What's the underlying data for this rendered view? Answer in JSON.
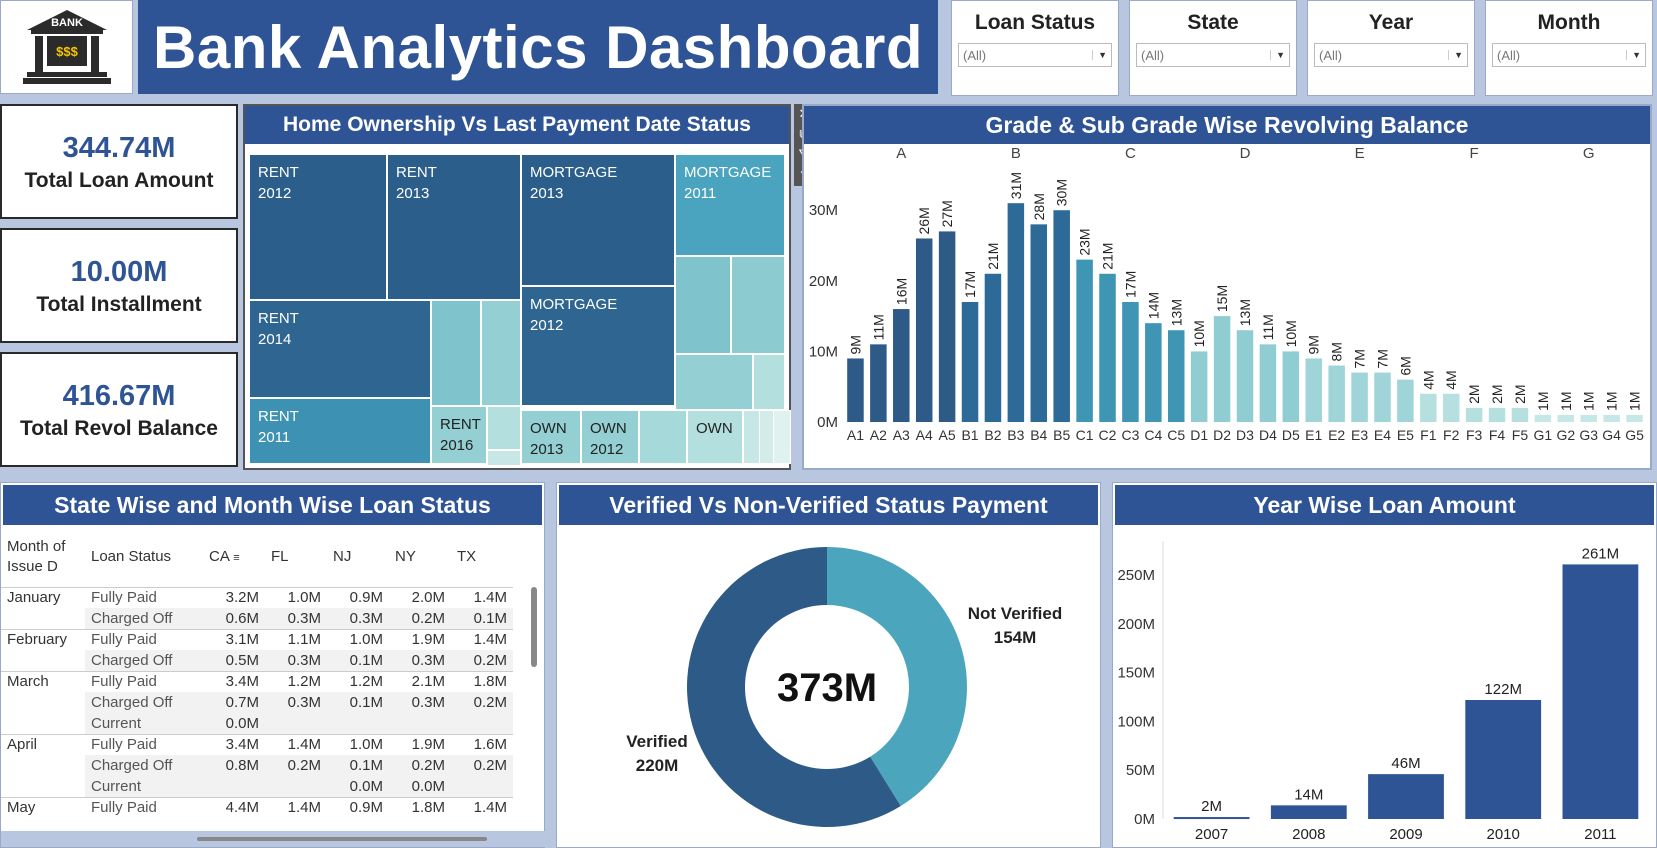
{
  "logo": {
    "text": "BANK",
    "symbol": "$$$",
    "icon": "bank-building-icon"
  },
  "title": "Bank Analytics Dashboard",
  "filters": [
    {
      "label": "Loan Status",
      "value": "(All)"
    },
    {
      "label": "State",
      "value": "(All)"
    },
    {
      "label": "Year",
      "value": "(All)"
    },
    {
      "label": "Month",
      "value": "(All)"
    }
  ],
  "kpis": [
    {
      "value": "344.74M",
      "label": "Total Loan Amount"
    },
    {
      "value": "10.00M",
      "label": "Total Installment"
    },
    {
      "value": "416.67M",
      "label": "Total Revol Balance"
    }
  ],
  "treemap": {
    "title": "Home Ownership Vs Last Payment Date Status",
    "cells": [
      {
        "label": "RENT",
        "sub": "2012",
        "color": "#2b5e8a"
      },
      {
        "label": "RENT",
        "sub": "2013",
        "color": "#2b5e8a"
      },
      {
        "label": "MORTGAGE",
        "sub": "2013",
        "color": "#2b5e8a"
      },
      {
        "label": "MORTGAGE",
        "sub": "2011",
        "color": "#4aa3bf"
      },
      {
        "label": "RENT",
        "sub": "2014",
        "color": "#2e6591"
      },
      {
        "label": "MORTGAGE",
        "sub": "2012",
        "color": "#2e6591"
      },
      {
        "label": "RENT",
        "sub": "2011",
        "color": "#3d92b3"
      },
      {
        "label": "RENT",
        "sub": "2016",
        "color": "#93cfd3"
      },
      {
        "label": "OWN",
        "sub": "2013",
        "color": "#93cfd3"
      },
      {
        "label": "OWN",
        "sub": "2012",
        "color": "#93cfd3"
      },
      {
        "label": "OWN",
        "sub": "",
        "color": "#b3dfdf"
      }
    ]
  },
  "toolbar": {
    "close": "✕",
    "popout": "⧉",
    "filter": "⛛",
    "more": "▾"
  },
  "grade_chart": {
    "title": "Grade & Sub Grade Wise Revolving Balance"
  },
  "state_table": {
    "title": "State Wise and Month Wise Loan Status",
    "headers": [
      "Month of Issue D",
      "Loan Status",
      "CA",
      "FL",
      "NJ",
      "NY",
      "TX"
    ],
    "rows": [
      {
        "month": "January",
        "status": "Fully Paid",
        "vals": [
          "3.2M",
          "1.0M",
          "0.9M",
          "2.0M",
          "1.4M"
        ]
      },
      {
        "month": "",
        "status": "Charged Off",
        "vals": [
          "0.6M",
          "0.3M",
          "0.3M",
          "0.2M",
          "0.1M"
        ]
      },
      {
        "month": "February",
        "status": "Fully Paid",
        "vals": [
          "3.1M",
          "1.1M",
          "1.0M",
          "1.9M",
          "1.4M"
        ]
      },
      {
        "month": "",
        "status": "Charged Off",
        "vals": [
          "0.5M",
          "0.3M",
          "0.1M",
          "0.3M",
          "0.2M"
        ]
      },
      {
        "month": "March",
        "status": "Fully Paid",
        "vals": [
          "3.4M",
          "1.2M",
          "1.2M",
          "2.1M",
          "1.8M"
        ]
      },
      {
        "month": "",
        "status": "Charged Off",
        "vals": [
          "0.7M",
          "0.3M",
          "0.1M",
          "0.3M",
          "0.2M"
        ]
      },
      {
        "month": "",
        "status": "Current",
        "vals": [
          "0.0M",
          "",
          "",
          "",
          ""
        ]
      },
      {
        "month": "April",
        "status": "Fully Paid",
        "vals": [
          "3.4M",
          "1.4M",
          "1.0M",
          "1.9M",
          "1.6M"
        ]
      },
      {
        "month": "",
        "status": "Charged Off",
        "vals": [
          "0.8M",
          "0.2M",
          "0.1M",
          "0.2M",
          "0.2M"
        ]
      },
      {
        "month": "",
        "status": "Current",
        "vals": [
          "",
          "",
          "0.0M",
          "0.0M",
          ""
        ]
      },
      {
        "month": "May",
        "status": "Fully Paid",
        "vals": [
          "4.4M",
          "1.4M",
          "0.9M",
          "1.8M",
          "1.4M"
        ]
      }
    ]
  },
  "verified_chart": {
    "title": "Verified Vs  Non-Verified Status Payment",
    "center": "373M"
  },
  "year_chart": {
    "title": "Year Wise Loan Amount"
  },
  "chart_data": [
    {
      "type": "bar",
      "title": "Grade & Sub Grade Wise Revolving Balance",
      "groups": [
        "A",
        "B",
        "C",
        "D",
        "E",
        "F",
        "G"
      ],
      "categories": [
        "A1",
        "A2",
        "A3",
        "A4",
        "A5",
        "B1",
        "B2",
        "B3",
        "B4",
        "B5",
        "C1",
        "C2",
        "C3",
        "C4",
        "C5",
        "D1",
        "D2",
        "D3",
        "D4",
        "D5",
        "E1",
        "E2",
        "E3",
        "E4",
        "E5",
        "F1",
        "F2",
        "F3",
        "F4",
        "F5",
        "G1",
        "G2",
        "G3",
        "G4",
        "G5"
      ],
      "values": [
        9,
        11,
        16,
        26,
        27,
        17,
        21,
        31,
        28,
        30,
        23,
        21,
        17,
        14,
        13,
        10,
        15,
        13,
        11,
        10,
        9,
        8,
        7,
        7,
        6,
        4,
        4,
        2,
        2,
        2,
        1,
        1,
        1,
        1,
        1
      ],
      "labels": [
        "9M",
        "11M",
        "16M",
        "26M",
        "27M",
        "17M",
        "21M",
        "31M",
        "28M",
        "30M",
        "23M",
        "21M",
        "17M",
        "14M",
        "13M",
        "10M",
        "15M",
        "13M",
        "11M",
        "10M",
        "9M",
        "8M",
        "7M",
        "7M",
        "6M",
        "4M",
        "4M",
        "2M",
        "2M",
        "2M",
        "1M",
        "1M",
        "1M",
        "1M",
        "1M"
      ],
      "yticks": [
        "0M",
        "10M",
        "20M",
        "30M"
      ],
      "ylim": [
        0,
        34
      ],
      "unit": "M"
    },
    {
      "type": "pie",
      "title": "Verified Vs  Non-Verified Status Payment",
      "slices": [
        {
          "name": "Not Verified",
          "value": 154,
          "label": "154M",
          "color": "#4ba6bd"
        },
        {
          "name": "Verified",
          "value": 220,
          "label": "220M",
          "color": "#2d5a86"
        }
      ]
    },
    {
      "type": "bar",
      "title": "Year Wise Loan Amount",
      "categories": [
        "2007",
        "2008",
        "2009",
        "2010",
        "2011"
      ],
      "values": [
        2,
        14,
        46,
        122,
        261
      ],
      "labels": [
        "2M",
        "14M",
        "46M",
        "122M",
        "261M"
      ],
      "yticks": [
        "0M",
        "50M",
        "100M",
        "150M",
        "200M",
        "250M"
      ],
      "ylim": [
        0,
        285
      ],
      "color": "#2f5496"
    }
  ]
}
